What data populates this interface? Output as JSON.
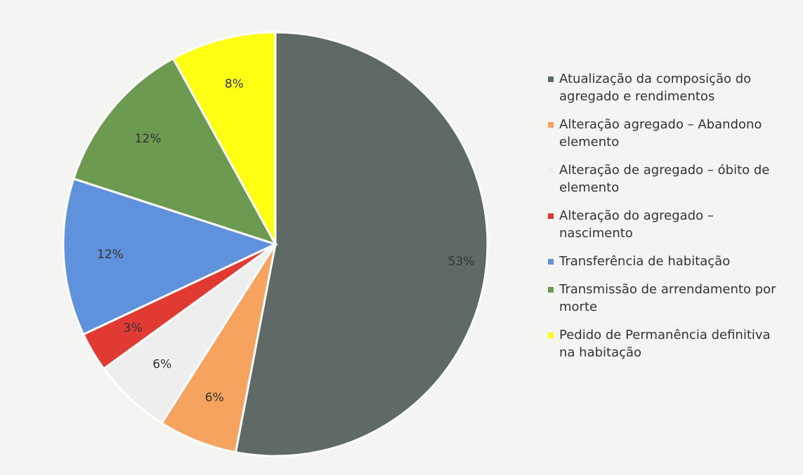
{
  "chart_data": {
    "type": "pie",
    "categories": [
      "Atualização da composição do agregado e rendimentos",
      "Alteração agregado – Abandono elemento",
      "Alteração de agregado – óbito de elemento",
      "Alteração do agregado – nascimento",
      "Transferência de habitação",
      "Transmissão de arrendamento por morte",
      "Pedido de Permanência definitiva na habitação"
    ],
    "values": [
      53,
      6,
      6,
      3,
      12,
      12,
      8
    ],
    "value_labels": [
      "53%",
      "6%",
      "6%",
      "3%",
      "12%",
      "12%",
      "8%"
    ],
    "colors": [
      "#5f6a66",
      "#f5a35e",
      "#eeeeee",
      "#e03a33",
      "#5f91dc",
      "#6c9a50",
      "#ffff14"
    ],
    "legend": "right"
  }
}
